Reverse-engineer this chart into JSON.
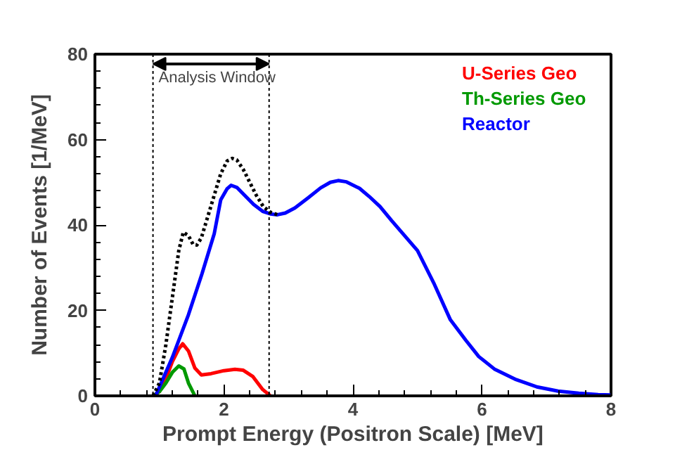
{
  "chart_data": {
    "type": "line",
    "xlabel": "Prompt Energy (Positron Scale) [MeV]",
    "ylabel": "Number of Events [1/MeV]",
    "xlim": [
      0,
      8
    ],
    "ylim": [
      0,
      80
    ],
    "xticks": [
      0,
      2,
      4,
      6,
      8
    ],
    "yticks": [
      0,
      20,
      40,
      60,
      80
    ],
    "grid": false,
    "legend": "top right",
    "marker": "none",
    "series": [
      {
        "name": "U-Series Geo",
        "color": "#ff0000",
        "x": [
          0.9,
          1.0,
          1.1,
          1.2,
          1.3,
          1.36,
          1.45,
          1.55,
          1.65,
          1.8,
          2.0,
          2.17,
          2.3,
          2.45,
          2.6,
          2.72
        ],
        "values": [
          0,
          1,
          4,
          8,
          11,
          12.2,
          10.5,
          6.5,
          4.9,
          5.2,
          5.9,
          6.2,
          6,
          4.5,
          1.5,
          0
        ]
      },
      {
        "name": "Th-Series Geo",
        "color": "#009900",
        "x": [
          0.9,
          1.0,
          1.1,
          1.2,
          1.3,
          1.38,
          1.45,
          1.55
        ],
        "values": [
          0,
          1,
          3,
          5.5,
          7,
          6.3,
          3,
          0
        ]
      },
      {
        "name": "Reactor",
        "color": "#0000ff",
        "x": [
          0.94,
          1.2,
          1.45,
          1.66,
          1.85,
          1.95,
          2.05,
          2.11,
          2.2,
          2.35,
          2.46,
          2.6,
          2.72,
          2.83,
          2.95,
          3.1,
          3.3,
          3.5,
          3.65,
          3.77,
          3.9,
          4.1,
          4.25,
          4.42,
          4.6,
          4.8,
          5.0,
          5.25,
          5.51,
          5.75,
          5.95,
          6.2,
          6.53,
          6.85,
          7.18,
          7.5,
          7.8,
          8.0
        ],
        "values": [
          0,
          9,
          19,
          28.6,
          38,
          45.9,
          48.5,
          49.3,
          48.8,
          46.5,
          44.8,
          43.2,
          42.6,
          42.4,
          42.8,
          44,
          46.3,
          48.7,
          50,
          50.4,
          50.1,
          48.6,
          46.7,
          44.3,
          41,
          37.5,
          34,
          26.5,
          17.8,
          13,
          9.2,
          6.2,
          3.8,
          2.1,
          1.1,
          0.6,
          0.3,
          0.2
        ]
      },
      {
        "color": "#000000",
        "line_style": "dotted",
        "x": [
          0.9,
          1.0,
          1.1,
          1.2,
          1.3,
          1.37,
          1.45,
          1.52,
          1.58,
          1.65,
          1.75,
          1.85,
          1.95,
          2.05,
          2.13,
          2.2,
          2.3,
          2.4,
          2.5,
          2.61,
          2.72,
          2.83
        ],
        "values": [
          0,
          3,
          12,
          23,
          34,
          38.3,
          37.5,
          35.5,
          35.3,
          37,
          42,
          47,
          52,
          55,
          55.6,
          55.2,
          53,
          50,
          47,
          44.3,
          43,
          42.4
        ]
      }
    ],
    "ref_lines": [
      {
        "axis": "x",
        "value": 0.9,
        "color": "#000000",
        "line_style": "dotted"
      },
      {
        "axis": "x",
        "value": 2.7,
        "color": "#000000",
        "line_style": "dotted"
      }
    ],
    "annotations": [
      {
        "text": "Analysis Window",
        "x": 0.9,
        "y": 77.7
      }
    ]
  }
}
